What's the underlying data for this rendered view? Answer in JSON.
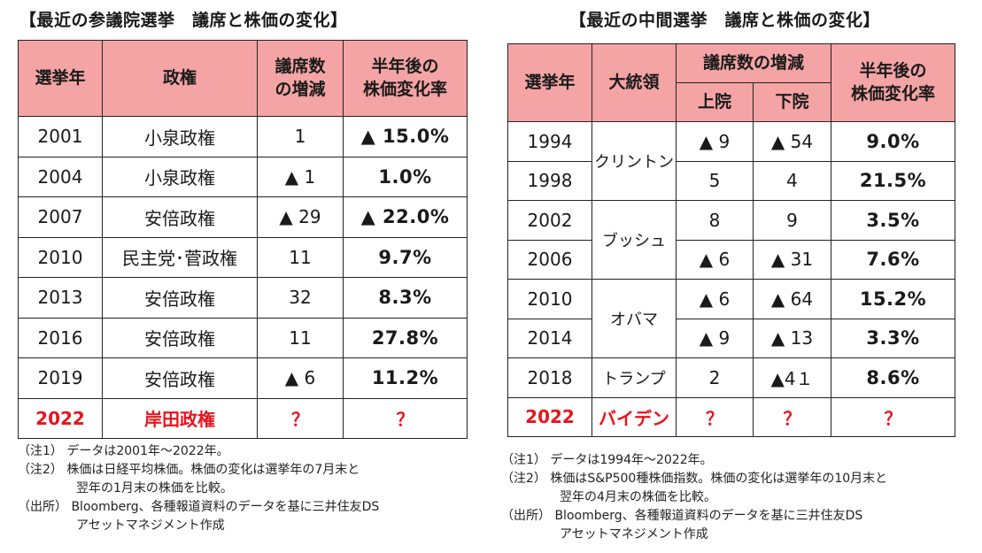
{
  "left": {
    "title": "【最近の参議院選挙　議席と株価の変化】",
    "headers": {
      "year": "選挙年",
      "gov": "政権",
      "seats_1": "議席数",
      "seats_2": "の増減",
      "chg_1": "半年後の",
      "chg_2": "株価変化率"
    },
    "rows": [
      {
        "year": "2001",
        "gov": "小泉政権",
        "seats": "1",
        "change": "▲ 15.0%"
      },
      {
        "year": "2004",
        "gov": "小泉政権",
        "seats": "▲ 1",
        "change": "1.0%"
      },
      {
        "year": "2007",
        "gov": "安倍政権",
        "seats": "▲ 29",
        "change": "▲ 22.0%"
      },
      {
        "year": "2010",
        "gov": "民主党･菅政権",
        "seats": "11",
        "change": "9.7%"
      },
      {
        "year": "2013",
        "gov": "安倍政権",
        "seats": "32",
        "change": "8.3%"
      },
      {
        "year": "2016",
        "gov": "安倍政権",
        "seats": "11",
        "change": "27.8%"
      },
      {
        "year": "2019",
        "gov": "安倍政権",
        "seats": "▲ 6",
        "change": "11.2%"
      }
    ],
    "highlight": {
      "year": "2022",
      "gov": "岸田政権",
      "seats": "？",
      "change": "？"
    },
    "notes": [
      "（注1）  データは2001年～2022年。",
      "（注2）  株価は日経平均株価。株価の変化は選挙年の7月末と",
      "翌年の1月末の株価を比較。",
      "（出所）  Bloomberg、各種報道資料のデータを基に三井住友DS",
      "アセットマネジメント作成"
    ]
  },
  "right": {
    "title": "【最近の中間選挙　議席と株価の変化】",
    "headers": {
      "year": "選挙年",
      "pres": "大統領",
      "seats": "議席数の増減",
      "senate": "上院",
      "house": "下院",
      "chg_1": "半年後の",
      "chg_2": "株価変化率"
    },
    "rows": [
      {
        "year": "1994",
        "senate": "▲ 9",
        "house": "▲ 54",
        "change": "9.0%"
      },
      {
        "year": "1998",
        "senate": "5",
        "house": "4",
        "change": "21.5%"
      },
      {
        "year": "2002",
        "senate": "8",
        "house": "9",
        "change": "3.5%"
      },
      {
        "year": "2006",
        "senate": "▲ 6",
        "house": "▲ 31",
        "change": "7.6%"
      },
      {
        "year": "2010",
        "senate": "▲ 6",
        "house": "▲ 64",
        "change": "15.2%"
      },
      {
        "year": "2014",
        "senate": "▲ 9",
        "house": "▲ 13",
        "change": "3.3%"
      },
      {
        "year": "2018",
        "senate": "2",
        "house": "▲4１",
        "change": "8.6%"
      }
    ],
    "presidents": [
      "クリントン",
      "ブッシュ",
      "オバマ",
      "トランプ"
    ],
    "highlight": {
      "year": "2022",
      "pres": "バイデン",
      "senate": "？",
      "house": "？",
      "change": "？"
    },
    "notes": [
      "（注1）  データは1994年～2022年。",
      "（注2）  株価はS&P500種株価指数。株価の変化は選挙年の10月末と",
      "翌年の4月末の株価を比較。",
      "（出所）  Bloomberg、各種報道資料のデータを基に三井住友DS",
      "アセットマネジメント作成"
    ]
  }
}
